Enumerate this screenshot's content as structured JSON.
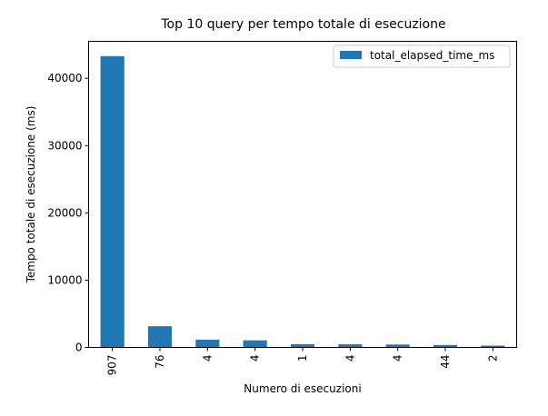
{
  "chart_data": {
    "type": "bar",
    "title": "Top 10 query per tempo totale di esecuzione",
    "xlabel": "Numero di esecuzioni",
    "ylabel": "Tempo totale di esecuzione (ms)",
    "categories": [
      "907",
      "76",
      "4",
      "4",
      "1",
      "4",
      "4",
      "44",
      "2"
    ],
    "series": [
      {
        "name": "total_elapsed_time_ms",
        "color": "#1f77b4",
        "values": [
          43300,
          3150,
          1150,
          1050,
          470,
          460,
          430,
          360,
          270
        ]
      }
    ],
    "ylim": [
      0,
      45500
    ],
    "yticks": [
      0,
      10000,
      20000,
      30000,
      40000
    ],
    "ytick_labels": [
      "0",
      "10000",
      "20000",
      "30000",
      "40000"
    ],
    "grid": false,
    "legend_position": "top-right"
  }
}
